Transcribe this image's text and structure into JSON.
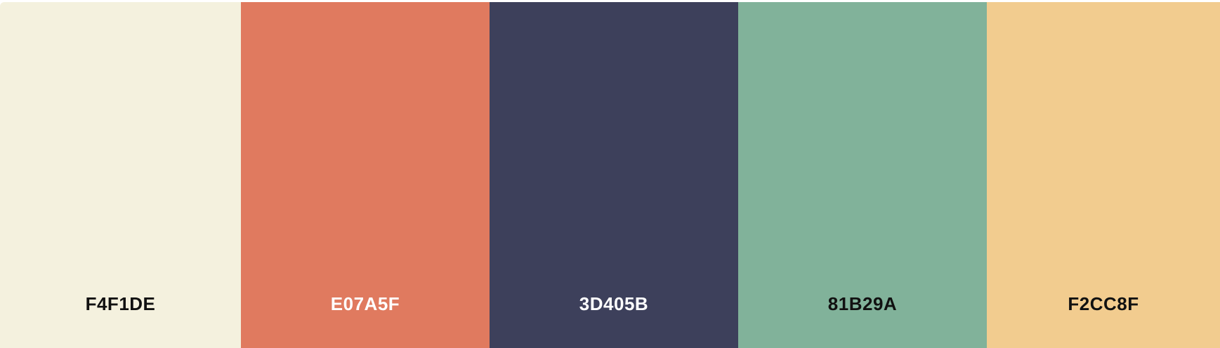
{
  "palette": {
    "swatches": [
      {
        "hex": "F4F1DE",
        "color": "#F4F1DE",
        "text_color": "#111111"
      },
      {
        "hex": "E07A5F",
        "color": "#E07A5F",
        "text_color": "#FFFFFF"
      },
      {
        "hex": "3D405B",
        "color": "#3D405B",
        "text_color": "#FFFFFF"
      },
      {
        "hex": "81B29A",
        "color": "#81B29A",
        "text_color": "#111111"
      },
      {
        "hex": "F2CC8F",
        "color": "#F2CC8F",
        "text_color": "#111111"
      }
    ]
  }
}
